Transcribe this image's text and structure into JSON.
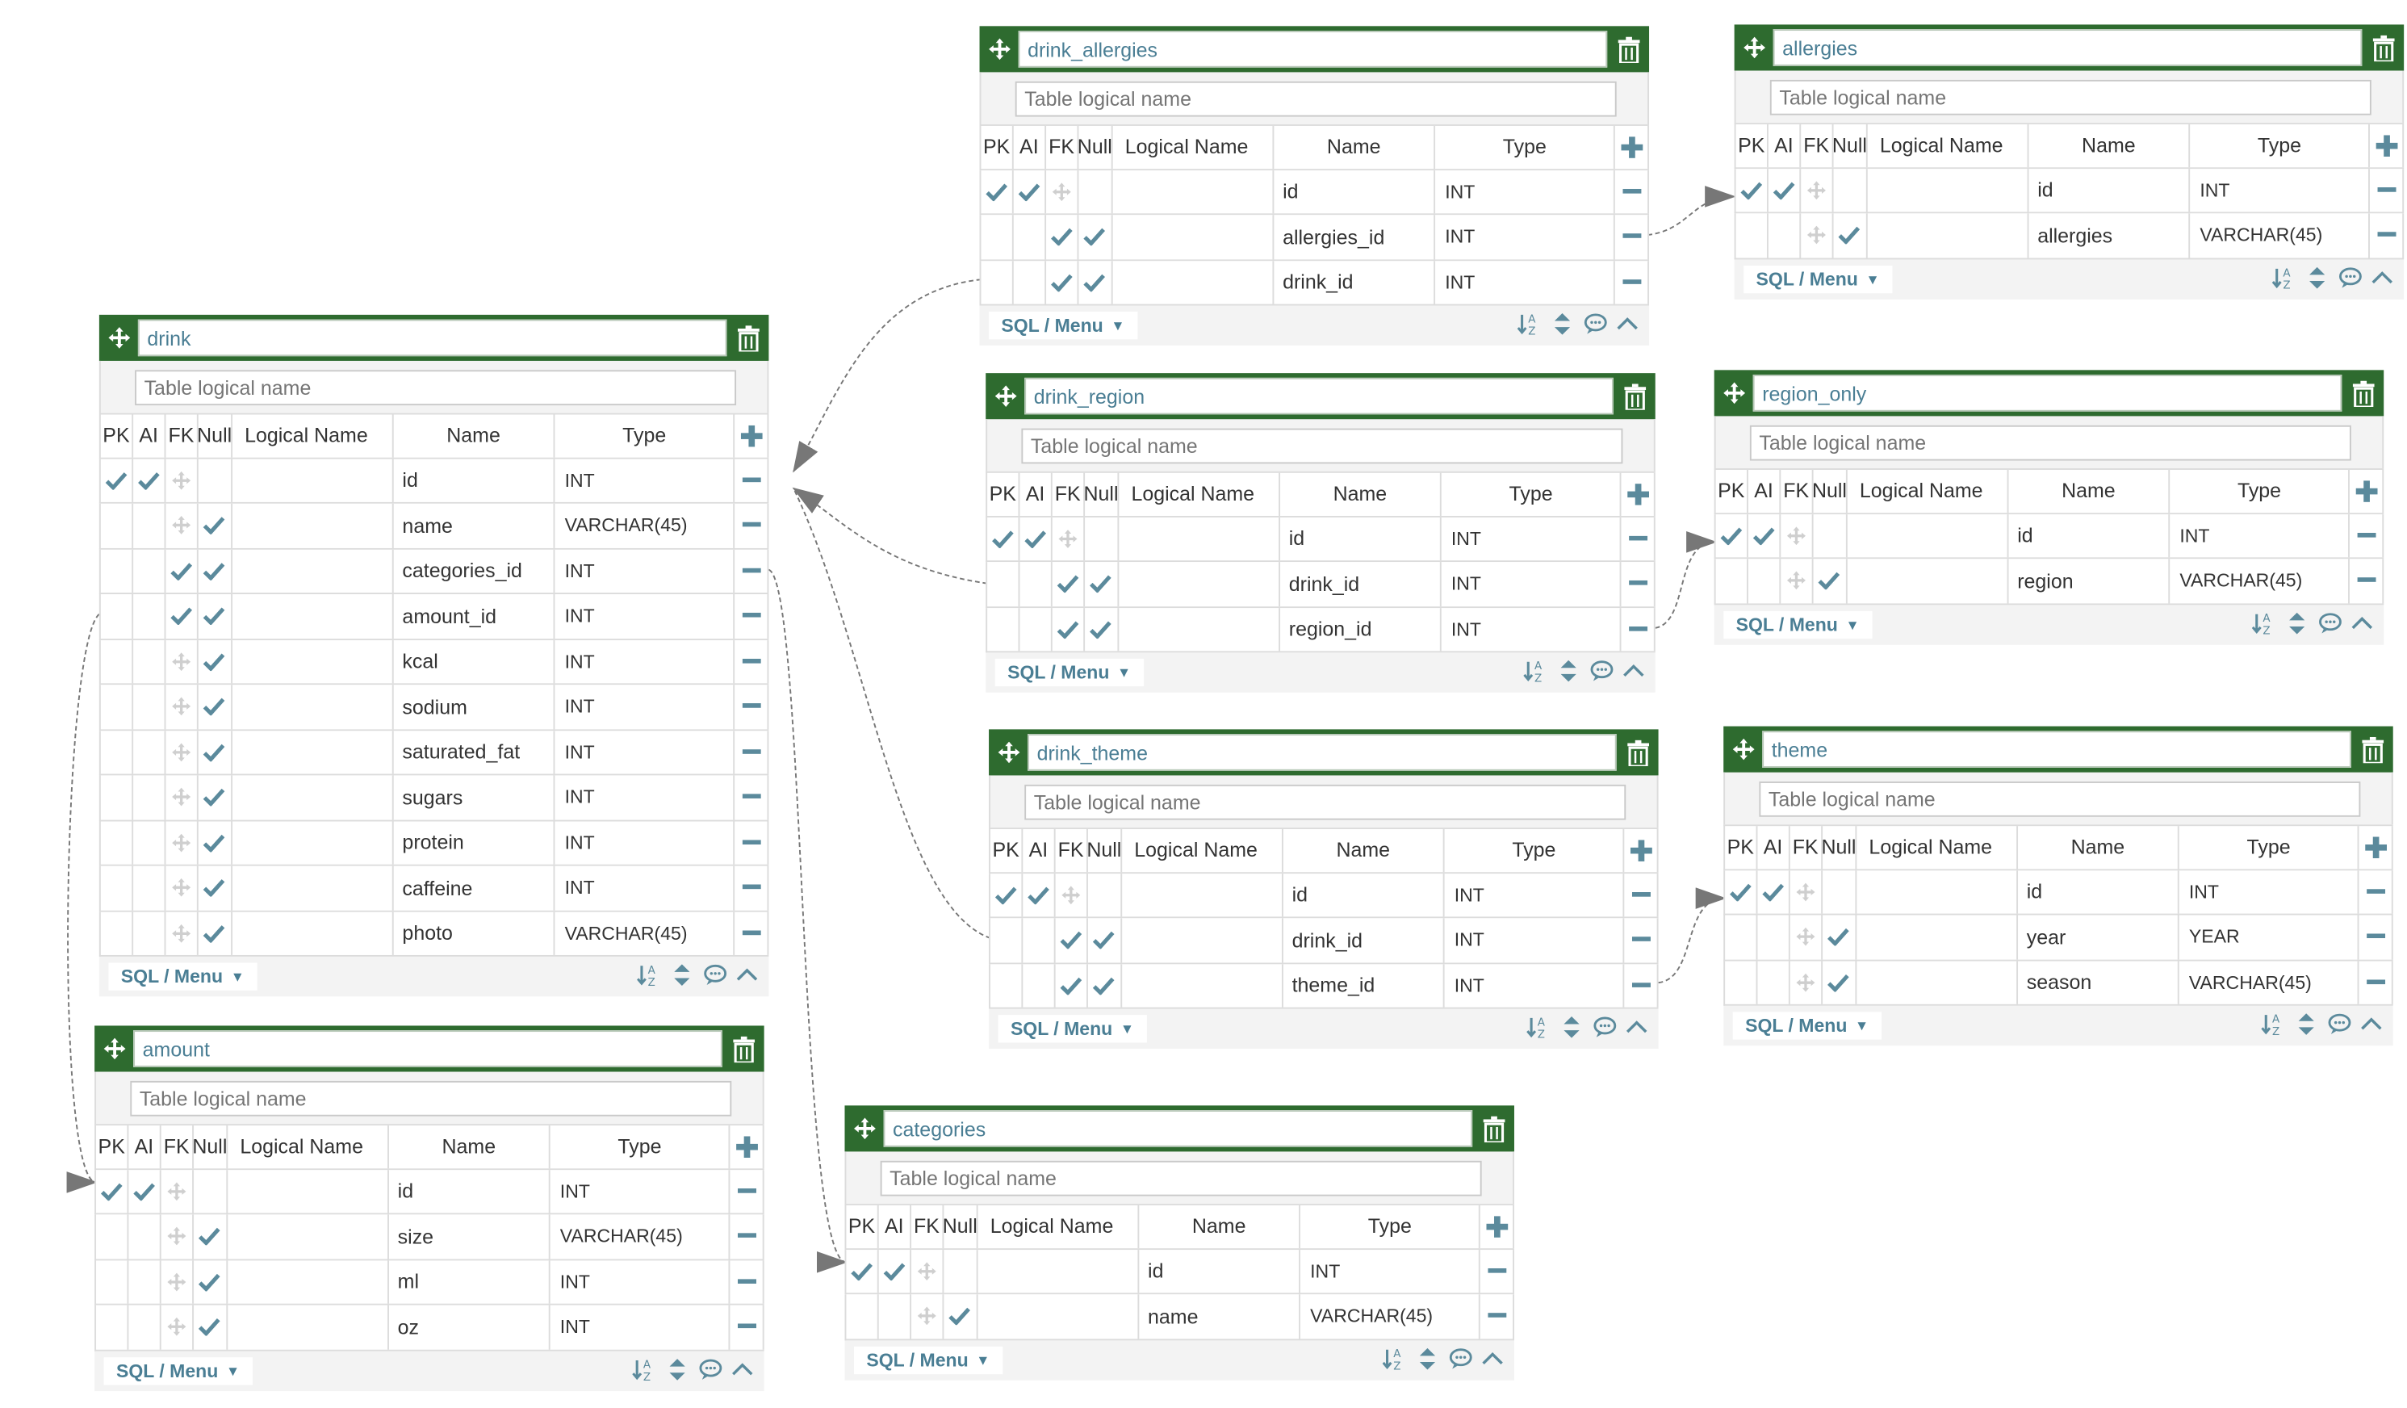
{
  "labels": {
    "table_logical_placeholder": "Table logical name",
    "pk": "PK",
    "ai": "AI",
    "fk": "FK",
    "null": "Null",
    "logical_name": "Logical Name",
    "name": "Name",
    "type": "Type",
    "sql_menu": "SQL / Menu"
  },
  "colors": {
    "header_green": "#2e6b2f",
    "accent_teal": "#4a7e94",
    "check": "#5b8a9c"
  },
  "tables": [
    {
      "name": "drink",
      "columns": [
        {
          "name": "id",
          "type": "INT",
          "pk": true,
          "ai": true,
          "fk": false,
          "null": false
        },
        {
          "name": "name",
          "type": "VARCHAR(45)",
          "pk": false,
          "ai": false,
          "fk": false,
          "null": true
        },
        {
          "name": "categories_id",
          "type": "INT",
          "pk": false,
          "ai": false,
          "fk": true,
          "null": true
        },
        {
          "name": "amount_id",
          "type": "INT",
          "pk": false,
          "ai": false,
          "fk": true,
          "null": true
        },
        {
          "name": "kcal",
          "type": "INT",
          "pk": false,
          "ai": false,
          "fk": false,
          "null": true
        },
        {
          "name": "sodium",
          "type": "INT",
          "pk": false,
          "ai": false,
          "fk": false,
          "null": true
        },
        {
          "name": "saturated_fat",
          "type": "INT",
          "pk": false,
          "ai": false,
          "fk": false,
          "null": true
        },
        {
          "name": "sugars",
          "type": "INT",
          "pk": false,
          "ai": false,
          "fk": false,
          "null": true
        },
        {
          "name": "protein",
          "type": "INT",
          "pk": false,
          "ai": false,
          "fk": false,
          "null": true
        },
        {
          "name": "caffeine",
          "type": "INT",
          "pk": false,
          "ai": false,
          "fk": false,
          "null": true
        },
        {
          "name": "photo",
          "type": "VARCHAR(45)",
          "pk": false,
          "ai": false,
          "fk": false,
          "null": true
        }
      ]
    },
    {
      "name": "amount",
      "columns": [
        {
          "name": "id",
          "type": "INT",
          "pk": true,
          "ai": true,
          "fk": false,
          "null": false
        },
        {
          "name": "size",
          "type": "VARCHAR(45)",
          "pk": false,
          "ai": false,
          "fk": false,
          "null": true
        },
        {
          "name": "ml",
          "type": "INT",
          "pk": false,
          "ai": false,
          "fk": false,
          "null": true
        },
        {
          "name": "oz",
          "type": "INT",
          "pk": false,
          "ai": false,
          "fk": false,
          "null": true
        }
      ]
    },
    {
      "name": "drink_allergies",
      "columns": [
        {
          "name": "id",
          "type": "INT",
          "pk": true,
          "ai": true,
          "fk": false,
          "null": false
        },
        {
          "name": "allergies_id",
          "type": "INT",
          "pk": false,
          "ai": false,
          "fk": true,
          "null": true
        },
        {
          "name": "drink_id",
          "type": "INT",
          "pk": false,
          "ai": false,
          "fk": true,
          "null": true
        }
      ]
    },
    {
      "name": "allergies",
      "columns": [
        {
          "name": "id",
          "type": "INT",
          "pk": true,
          "ai": true,
          "fk": false,
          "null": false
        },
        {
          "name": "allergies",
          "type": "VARCHAR(45)",
          "pk": false,
          "ai": false,
          "fk": false,
          "null": true
        }
      ]
    },
    {
      "name": "drink_region",
      "columns": [
        {
          "name": "id",
          "type": "INT",
          "pk": true,
          "ai": true,
          "fk": false,
          "null": false
        },
        {
          "name": "drink_id",
          "type": "INT",
          "pk": false,
          "ai": false,
          "fk": true,
          "null": true
        },
        {
          "name": "region_id",
          "type": "INT",
          "pk": false,
          "ai": false,
          "fk": true,
          "null": true
        }
      ]
    },
    {
      "name": "region_only",
      "columns": [
        {
          "name": "id",
          "type": "INT",
          "pk": true,
          "ai": true,
          "fk": false,
          "null": false
        },
        {
          "name": "region",
          "type": "VARCHAR(45)",
          "pk": false,
          "ai": false,
          "fk": false,
          "null": true
        }
      ]
    },
    {
      "name": "drink_theme",
      "columns": [
        {
          "name": "id",
          "type": "INT",
          "pk": true,
          "ai": true,
          "fk": false,
          "null": false
        },
        {
          "name": "drink_id",
          "type": "INT",
          "pk": false,
          "ai": false,
          "fk": true,
          "null": true
        },
        {
          "name": "theme_id",
          "type": "INT",
          "pk": false,
          "ai": false,
          "fk": true,
          "null": true
        }
      ]
    },
    {
      "name": "theme",
      "columns": [
        {
          "name": "id",
          "type": "INT",
          "pk": true,
          "ai": true,
          "fk": false,
          "null": false
        },
        {
          "name": "year",
          "type": "YEAR",
          "pk": false,
          "ai": false,
          "fk": false,
          "null": true
        },
        {
          "name": "season",
          "type": "VARCHAR(45)",
          "pk": false,
          "ai": false,
          "fk": false,
          "null": true
        }
      ]
    },
    {
      "name": "categories",
      "columns": [
        {
          "name": "id",
          "type": "INT",
          "pk": true,
          "ai": true,
          "fk": false,
          "null": false
        },
        {
          "name": "name",
          "type": "VARCHAR(45)",
          "pk": false,
          "ai": false,
          "fk": false,
          "null": true
        }
      ]
    }
  ]
}
